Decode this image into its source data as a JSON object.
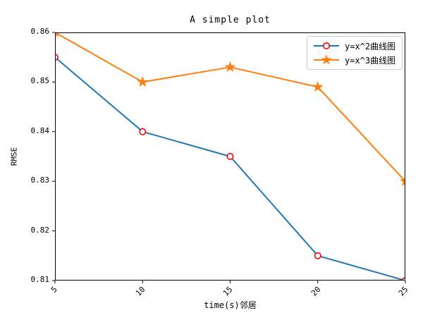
{
  "chart_data": {
    "type": "line",
    "title": "A simple plot",
    "xlabel": "time(s)邻居",
    "ylabel": "RMSE",
    "x": [
      5,
      10,
      15,
      20,
      25
    ],
    "series": [
      {
        "name": "y=x^2曲线图",
        "values": [
          0.855,
          0.84,
          0.835,
          0.815,
          0.81
        ],
        "color": "#1f77b4",
        "marker": "circle",
        "marker_edge": "#ff0000",
        "marker_face": "#ffffff"
      },
      {
        "name": "y=x^3曲线图",
        "values": [
          0.86,
          0.85,
          0.853,
          0.849,
          0.83
        ],
        "color": "#ff7f0e",
        "marker": "star",
        "marker_edge": "#ff7f0e",
        "marker_face": "#ff7f0e"
      }
    ],
    "xlim": [
      5,
      25
    ],
    "ylim": [
      0.81,
      0.86
    ],
    "x_ticks": [
      5,
      10,
      15,
      20,
      25
    ],
    "y_ticks": [
      0.81,
      0.82,
      0.83,
      0.84,
      0.85,
      0.86
    ],
    "x_tick_rotation": 45,
    "grid": false,
    "legend_position": "upper right",
    "spine_color": "#000000",
    "background": "#ffffff"
  }
}
